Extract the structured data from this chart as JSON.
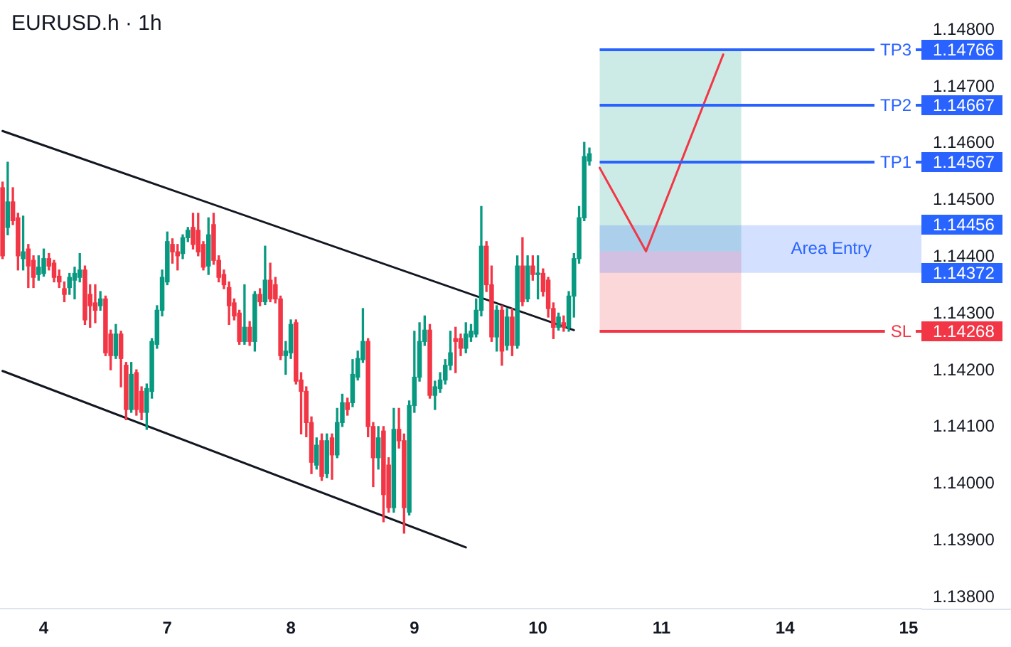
{
  "chart_data": {
    "type": "candlestick",
    "title": "EURUSD.h · 1h",
    "categories": [
      null,
      null,
      null,
      null,
      null,
      null,
      null,
      null,
      "4",
      null,
      null,
      null,
      null,
      null,
      null,
      null,
      null,
      null,
      null,
      null,
      null,
      null,
      null,
      null,
      null,
      null,
      null,
      null,
      null,
      null,
      null,
      null,
      "7",
      null,
      null,
      null,
      null,
      null,
      null,
      null,
      null,
      null,
      null,
      null,
      null,
      null,
      null,
      null,
      null,
      null,
      null,
      null,
      null,
      null,
      null,
      null,
      "8",
      null,
      null,
      null,
      null,
      null,
      null,
      null,
      null,
      null,
      null,
      null,
      null,
      null,
      null,
      null,
      null,
      null,
      null,
      null,
      null,
      null,
      null,
      null,
      "9",
      null,
      null,
      null,
      null,
      null,
      null,
      null,
      null,
      null,
      null,
      null,
      null,
      null,
      null,
      null,
      null,
      null,
      null,
      null,
      null,
      null,
      null,
      null,
      "10",
      null,
      null,
      null,
      null,
      null,
      null,
      null,
      null,
      null,
      null,
      null,
      null,
      null,
      null,
      null,
      null,
      null,
      null,
      null,
      null,
      null,
      null,
      null,
      "11",
      null,
      null,
      null,
      null,
      null,
      null,
      null,
      null,
      null,
      null,
      null,
      null,
      null,
      null,
      null,
      null,
      null,
      null,
      null,
      null,
      null,
      null,
      null,
      "14",
      null,
      null,
      null,
      null,
      null,
      null,
      null,
      null,
      null,
      null,
      null,
      null,
      null,
      null,
      null,
      null,
      null,
      null,
      null,
      null,
      null,
      null,
      null,
      "15",
      null,
      null
    ],
    "ohlc": [
      [
        1.14522,
        1.14532,
        1.14397,
        1.14402
      ],
      [
        1.14452,
        1.14567,
        1.14439,
        1.14497
      ],
      [
        1.14497,
        1.14522,
        1.14457,
        1.14464
      ],
      [
        1.14469,
        1.14477,
        1.14377,
        1.14402
      ],
      [
        1.14397,
        1.14472,
        1.14377,
        1.14409
      ],
      [
        1.14414,
        1.14422,
        1.14346,
        1.14384
      ],
      [
        1.14394,
        1.14402,
        1.14346,
        1.14364
      ],
      [
        1.14369,
        1.14402,
        1.14359,
        1.14382
      ],
      [
        1.14371,
        1.14414,
        1.14366,
        1.14397
      ],
      [
        1.14397,
        1.14406,
        1.14377,
        1.14384
      ],
      [
        1.14389,
        1.14394,
        1.14356,
        1.14364
      ],
      [
        1.14366,
        1.14377,
        1.14346,
        1.14356
      ],
      [
        1.14344,
        1.14356,
        1.14321,
        1.14334
      ],
      [
        1.14346,
        1.14371,
        1.14334,
        1.14364
      ],
      [
        1.14359,
        1.14382,
        1.14326,
        1.14371
      ],
      [
        1.14364,
        1.14406,
        1.14356,
        1.14377
      ],
      [
        1.14377,
        1.14384,
        1.14281,
        1.14289
      ],
      [
        1.14334,
        1.14351,
        1.14276,
        1.14314
      ],
      [
        1.14319,
        1.14351,
        1.14284,
        1.14306
      ],
      [
        1.14314,
        1.14339,
        1.14306,
        1.14326
      ],
      [
        1.14326,
        1.14331,
        1.14226,
        1.14231
      ],
      [
        1.14264,
        1.14271,
        1.14201,
        1.14226
      ],
      [
        1.14226,
        1.14281,
        1.14221,
        1.14264
      ],
      [
        1.14264,
        1.14269,
        1.14171,
        1.14221
      ],
      [
        1.14209,
        1.14214,
        1.14113,
        1.14131
      ],
      [
        1.14131,
        1.14214,
        1.14126,
        1.14193
      ],
      [
        1.14196,
        1.14201,
        1.14121,
        1.14131
      ],
      [
        1.14163,
        1.14171,
        1.14113,
        1.14126
      ],
      [
        1.14126,
        1.14176,
        1.14096,
        1.14168
      ],
      [
        1.14163,
        1.14256,
        1.14151,
        1.14251
      ],
      [
        1.14246,
        1.14314,
        1.14239,
        1.14306
      ],
      [
        1.14306,
        1.14377,
        1.14296,
        1.14364
      ],
      [
        1.14356,
        1.14444,
        1.14351,
        1.14427
      ],
      [
        1.14422,
        1.14432,
        1.14389,
        1.14409
      ],
      [
        1.14409,
        1.14422,
        1.14377,
        1.14402
      ],
      [
        1.14406,
        1.14439,
        1.14397,
        1.14434
      ],
      [
        1.14434,
        1.14452,
        1.14427,
        1.14447
      ],
      [
        1.14452,
        1.14477,
        1.14414,
        1.14422
      ],
      [
        1.14447,
        1.14477,
        1.14402,
        1.14409
      ],
      [
        1.14422,
        1.14427,
        1.14377,
        1.14382
      ],
      [
        1.14384,
        1.14469,
        1.14369,
        1.14439
      ],
      [
        1.14457,
        1.14477,
        1.14387,
        1.14394
      ],
      [
        1.14394,
        1.14402,
        1.14356,
        1.14364
      ],
      [
        1.14369,
        1.14377,
        1.14344,
        1.14351
      ],
      [
        1.14346,
        1.14356,
        1.14281,
        1.14314
      ],
      [
        1.14319,
        1.14326,
        1.14289,
        1.14296
      ],
      [
        1.14301,
        1.14306,
        1.14246,
        1.14251
      ],
      [
        1.14251,
        1.14351,
        1.14246,
        1.14276
      ],
      [
        1.14276,
        1.14286,
        1.14244,
        1.14251
      ],
      [
        1.14251,
        1.14339,
        1.14234,
        1.14334
      ],
      [
        1.14334,
        1.14344,
        1.14314,
        1.14321
      ],
      [
        1.14321,
        1.14419,
        1.14316,
        1.14359
      ],
      [
        1.14359,
        1.14389,
        1.14321,
        1.14326
      ],
      [
        1.14351,
        1.14364,
        1.14319,
        1.14326
      ],
      [
        1.14326,
        1.14331,
        1.14219,
        1.14226
      ],
      [
        1.14226,
        1.14251,
        1.14193,
        1.14234
      ],
      [
        1.14231,
        1.14289,
        1.14221,
        1.14281
      ],
      [
        1.14284,
        1.14289,
        1.14176,
        1.14181
      ],
      [
        1.14183,
        1.14196,
        1.14088,
        1.14163
      ],
      [
        1.14163,
        1.14171,
        1.14083,
        1.14108
      ],
      [
        1.14108,
        1.14118,
        1.14018,
        1.14038
      ],
      [
        1.14033,
        1.14081,
        1.14026,
        1.14068
      ],
      [
        1.14076,
        1.14088,
        1.14006,
        1.14013
      ],
      [
        1.14018,
        1.14088,
        1.14011,
        1.14076
      ],
      [
        1.14081,
        1.14088,
        1.14008,
        1.14051
      ],
      [
        1.14051,
        1.14133,
        1.14046,
        1.14108
      ],
      [
        1.14108,
        1.14158,
        1.14101,
        1.14143
      ],
      [
        1.14143,
        1.14151,
        1.14121,
        1.14131
      ],
      [
        1.14143,
        1.14219,
        1.14136,
        1.14193
      ],
      [
        1.14188,
        1.14234,
        1.14183,
        1.14221
      ],
      [
        1.14219,
        1.14309,
        1.14214,
        1.14251
      ],
      [
        1.14251,
        1.14256,
        1.14083,
        1.14101
      ],
      [
        1.14101,
        1.14108,
        1.13995,
        1.14046
      ],
      [
        1.14046,
        1.14101,
        1.14026,
        1.14081
      ],
      [
        1.14093,
        1.14101,
        1.13933,
        1.13981
      ],
      [
        1.14033,
        1.14046,
        1.1395,
        1.13958
      ],
      [
        1.13958,
        1.14133,
        1.1395,
        1.14096
      ],
      [
        1.14096,
        1.14133,
        1.14063,
        1.14076
      ],
      [
        1.14076,
        1.14088,
        1.13913,
        1.13958
      ],
      [
        1.1395,
        1.14146,
        1.13945,
        1.14138
      ],
      [
        1.14138,
        1.14269,
        1.14126,
        1.14188
      ],
      [
        1.14188,
        1.14284,
        1.14181,
        1.14251
      ],
      [
        1.14251,
        1.14296,
        1.14244,
        1.14271
      ],
      [
        1.14271,
        1.14281,
        1.14151,
        1.14156
      ],
      [
        1.14156,
        1.14181,
        1.14131,
        1.14171
      ],
      [
        1.14168,
        1.14196,
        1.14161,
        1.14183
      ],
      [
        1.14183,
        1.14219,
        1.14176,
        1.14209
      ],
      [
        1.14209,
        1.14269,
        1.14201,
        1.14231
      ],
      [
        1.14256,
        1.14276,
        1.14196,
        1.14251
      ],
      [
        1.14256,
        1.14264,
        1.14226,
        1.14239
      ],
      [
        1.14239,
        1.14284,
        1.14231,
        1.14264
      ],
      [
        1.14259,
        1.14281,
        1.14251,
        1.14269
      ],
      [
        1.14264,
        1.14326,
        1.14259,
        1.14306
      ],
      [
        1.14306,
        1.14489,
        1.14296,
        1.14419
      ],
      [
        1.14419,
        1.14427,
        1.14339,
        1.14351
      ],
      [
        1.14351,
        1.14384,
        1.14251,
        1.14259
      ],
      [
        1.14259,
        1.14314,
        1.14234,
        1.14306
      ],
      [
        1.14306,
        1.14314,
        1.14209,
        1.14234
      ],
      [
        1.14244,
        1.14309,
        1.14236,
        1.14294
      ],
      [
        1.14294,
        1.14309,
        1.14226,
        1.14244
      ],
      [
        1.14244,
        1.14402,
        1.14239,
        1.14384
      ],
      [
        1.14384,
        1.14434,
        1.14314,
        1.14321
      ],
      [
        1.14326,
        1.14402,
        1.14321,
        1.14384
      ],
      [
        1.14384,
        1.14402,
        1.14359,
        1.14369
      ],
      [
        1.14369,
        1.14402,
        1.14326,
        1.14371
      ],
      [
        1.14371,
        1.14379,
        1.14331,
        1.14339
      ],
      [
        1.14359,
        1.14364,
        1.14294,
        1.14309
      ],
      [
        1.14309,
        1.14319,
        1.14256,
        1.14276
      ],
      [
        1.14276,
        1.14301,
        1.14271,
        1.14294
      ],
      [
        1.14284,
        1.14296,
        1.14269,
        1.14276
      ],
      [
        1.14276,
        1.14339,
        1.14269,
        1.14331
      ],
      [
        1.14331,
        1.14406,
        1.14294,
        1.14397
      ],
      [
        1.14397,
        1.14489,
        1.14389,
        1.14469
      ],
      [
        1.14469,
        1.14602,
        1.14464,
        1.14577
      ],
      [
        1.14569,
        1.14592,
        1.14562,
        1.14582
      ],
      null,
      null,
      null,
      null,
      null,
      null,
      null,
      null,
      null,
      null,
      null,
      null,
      null,
      null,
      null,
      null,
      null,
      null,
      null,
      null,
      null,
      null,
      null,
      null,
      null,
      null,
      null,
      null,
      null,
      null,
      null,
      null,
      null,
      null,
      null,
      null,
      null,
      null,
      null,
      null,
      null,
      null,
      null,
      null,
      null,
      null,
      null,
      null,
      null,
      null,
      null,
      null,
      null,
      null,
      null,
      null,
      null,
      null,
      null,
      null,
      null,
      null,
      null,
      null
    ],
    "colors": [
      "#f23645",
      "#089981",
      "#f23645",
      "#f23645",
      "#089981",
      "#f23645",
      "#f23645",
      "#089981",
      "#089981",
      "#f23645",
      "#f23645",
      "#f23645",
      "#f23645",
      "#089981",
      "#089981",
      "#089981",
      "#f23645",
      "#f23645",
      "#f23645",
      "#089981",
      "#f23645",
      "#f23645",
      "#089981",
      "#f23645",
      "#f23645",
      "#089981",
      "#f23645",
      "#f23645",
      "#089981",
      "#089981",
      "#089981",
      "#089981",
      "#089981",
      "#f23645",
      "#f23645",
      "#089981",
      "#089981",
      "#f23645",
      "#f23645",
      "#f23645",
      "#089981",
      "#f23645",
      "#f23645",
      "#f23645",
      "#f23645",
      "#f23645",
      "#f23645",
      "#089981",
      "#f23645",
      "#089981",
      "#f23645",
      "#089981",
      "#f23645",
      "#f23645",
      "#f23645",
      "#089981",
      "#089981",
      "#f23645",
      "#f23645",
      "#f23645",
      "#f23645",
      "#089981",
      "#f23645",
      "#089981",
      "#f23645",
      "#089981",
      "#089981",
      "#f23645",
      "#089981",
      "#089981",
      "#089981",
      "#f23645",
      "#f23645",
      "#089981",
      "#f23645",
      "#f23645",
      "#089981",
      "#f23645",
      "#f23645",
      "#089981",
      "#089981",
      "#089981",
      "#089981",
      "#f23645",
      "#089981",
      "#089981",
      "#089981",
      "#089981",
      "#f23645",
      "#f23645",
      "#089981",
      "#089981",
      "#089981",
      "#089981",
      "#f23645",
      "#f23645",
      "#089981",
      "#f23645",
      "#089981",
      "#f23645",
      "#089981",
      "#f23645",
      "#089981",
      "#f23645",
      "#089981",
      "#f23645",
      "#f23645",
      "#f23645",
      "#089981",
      "#f23645",
      "#089981",
      "#089981",
      "#089981",
      "#089981",
      "#089981",
      null,
      null,
      null,
      null,
      null,
      null,
      null,
      null,
      null,
      null,
      null,
      null,
      null,
      null,
      null,
      null,
      null,
      null,
      null,
      null,
      null,
      null,
      null,
      null,
      null,
      null,
      null,
      null,
      null,
      null,
      null,
      null,
      null,
      null,
      null,
      null,
      null,
      null,
      null,
      null,
      null,
      null,
      null,
      null,
      null,
      null,
      null,
      null,
      null,
      null,
      null,
      null,
      null,
      null,
      null,
      null,
      null,
      null,
      null,
      null,
      null,
      null,
      null,
      null
    ],
    "series": [
      {
        "type": "line",
        "color": "#131722",
        "values": [
          1.14622,
          null,
          null,
          null,
          null,
          null,
          null,
          null,
          null,
          null,
          null,
          null,
          null,
          null,
          null,
          null,
          null,
          null,
          null,
          null,
          null,
          null,
          null,
          null,
          null,
          null,
          null,
          null,
          null,
          null,
          null,
          null,
          null,
          null,
          null,
          null,
          null,
          null,
          null,
          null,
          null,
          null,
          null,
          null,
          null,
          null,
          null,
          null,
          null,
          null,
          null,
          null,
          null,
          null,
          null,
          null,
          null,
          null,
          null,
          null,
          null,
          null,
          null,
          null,
          null,
          null,
          null,
          null,
          null,
          null,
          null,
          null,
          null,
          null,
          null,
          null,
          null,
          null,
          null,
          null,
          null,
          null,
          null,
          null,
          null,
          null,
          null,
          null,
          null,
          null,
          null,
          null,
          null,
          null,
          null,
          null,
          null,
          null,
          null,
          null,
          null,
          null,
          null,
          null,
          null,
          null,
          null,
          null,
          null,
          null,
          null,
          1.14271,
          null,
          null,
          null,
          null,
          null,
          null,
          null,
          null,
          null,
          null,
          null,
          null,
          null,
          null,
          null,
          null,
          null,
          null,
          null,
          null,
          null,
          null,
          null,
          null,
          null,
          null,
          null,
          null,
          null,
          null,
          null,
          null,
          null,
          null,
          null,
          null,
          null,
          null,
          null,
          null,
          null,
          null,
          null,
          null,
          null,
          null,
          null,
          null,
          null,
          null,
          null,
          null,
          null,
          null,
          null,
          null,
          null,
          null,
          null,
          null,
          null,
          null,
          null,
          null,
          null,
          null,
          null
        ]
      },
      {
        "type": "line",
        "color": "#131722",
        "values": [
          1.14199,
          null,
          null,
          null,
          null,
          null,
          null,
          null,
          null,
          null,
          null,
          null,
          null,
          null,
          null,
          null,
          null,
          null,
          null,
          null,
          null,
          null,
          null,
          null,
          null,
          null,
          null,
          null,
          null,
          null,
          null,
          null,
          null,
          null,
          null,
          null,
          null,
          null,
          null,
          null,
          null,
          null,
          null,
          null,
          null,
          null,
          null,
          null,
          null,
          null,
          null,
          null,
          null,
          null,
          null,
          null,
          null,
          null,
          null,
          null,
          null,
          null,
          null,
          null,
          null,
          null,
          null,
          null,
          null,
          null,
          null,
          null,
          null,
          null,
          null,
          null,
          null,
          null,
          null,
          null,
          null,
          null,
          null,
          null,
          null,
          null,
          null,
          null,
          null,
          null,
          1.13888,
          null,
          null,
          null,
          null,
          null,
          null,
          null,
          null,
          null,
          null,
          null,
          null,
          null,
          null,
          null,
          null,
          null,
          null,
          null,
          null,
          null,
          null,
          null,
          null,
          null,
          null,
          null,
          null,
          null,
          null,
          null,
          null,
          null,
          null,
          null,
          null,
          null,
          null,
          null,
          null,
          null,
          null,
          null,
          null,
          null,
          null,
          null,
          null,
          null,
          null,
          null,
          null,
          null,
          null,
          null,
          null,
          null,
          null,
          null,
          null,
          null,
          null,
          null,
          null,
          null,
          null,
          null,
          null,
          null,
          null,
          null,
          null,
          null,
          null,
          null,
          null,
          null,
          null,
          null,
          null,
          null,
          null,
          null,
          null,
          null,
          null,
          null,
          null
        ]
      },
      {
        "type": "line",
        "color": "#f23645",
        "values": [
          null,
          null,
          null,
          null,
          null,
          null,
          null,
          null,
          null,
          null,
          null,
          null,
          null,
          null,
          null,
          null,
          null,
          null,
          null,
          null,
          null,
          null,
          null,
          null,
          null,
          null,
          null,
          null,
          null,
          null,
          null,
          null,
          null,
          null,
          null,
          null,
          null,
          null,
          null,
          null,
          null,
          null,
          null,
          null,
          null,
          null,
          null,
          null,
          null,
          null,
          null,
          null,
          null,
          null,
          null,
          null,
          null,
          null,
          null,
          null,
          null,
          null,
          null,
          null,
          null,
          null,
          null,
          null,
          null,
          null,
          null,
          null,
          null,
          null,
          null,
          null,
          null,
          null,
          null,
          null,
          null,
          null,
          null,
          null,
          null,
          null,
          null,
          null,
          null,
          null,
          null,
          null,
          null,
          null,
          null,
          null,
          null,
          null,
          null,
          null,
          null,
          null,
          null,
          null,
          null,
          null,
          null,
          null,
          null,
          null,
          null,
          null,
          null,
          null,
          null,
          null,
          1.14557,
          null,
          null,
          null,
          null,
          null,
          null,
          null,
          null,
          1.1441,
          null,
          null,
          null,
          null,
          null,
          null,
          null,
          null,
          null,
          null,
          null,
          null,
          null,
          null,
          1.14757,
          null,
          null,
          null,
          null,
          null,
          null,
          null,
          null,
          null,
          null,
          null,
          null,
          null,
          null,
          null,
          null,
          null,
          null,
          null,
          null,
          null,
          null,
          null,
          null,
          null,
          null,
          null,
          null,
          null,
          null,
          null,
          null,
          null,
          null,
          null,
          null,
          null,
          null
        ]
      }
    ],
    "ylim": [
      1.1378,
      1.14853
    ],
    "yticks": [
      {
        "value": 1.138,
        "label": "1.13800"
      },
      {
        "value": 1.139,
        "label": "1.13900"
      },
      {
        "value": 1.14,
        "label": "1.14000"
      },
      {
        "value": 1.141,
        "label": "1.14100"
      },
      {
        "value": 1.142,
        "label": "1.14200"
      },
      {
        "value": 1.143,
        "label": "1.14300"
      },
      {
        "value": 1.144,
        "label": "1.14400"
      },
      {
        "value": 1.145,
        "label": "1.14500"
      },
      {
        "value": 1.146,
        "label": "1.14600"
      },
      {
        "value": 1.147,
        "label": "1.14700"
      },
      {
        "value": 1.148,
        "label": "1.14800"
      }
    ],
    "ref_lines": [
      {
        "axis": "y",
        "value": 1.14766,
        "label": "TP3",
        "color": "#2962ff"
      },
      {
        "axis": "y",
        "value": 1.14667,
        "label": "TP2",
        "color": "#2962ff"
      },
      {
        "axis": "y",
        "value": 1.14567,
        "label": "TP1",
        "color": "#2962ff"
      },
      {
        "axis": "y",
        "value": 1.14268,
        "label": "SL",
        "color": "#f23645"
      }
    ],
    "bands": [
      {
        "axis": "y",
        "from": 1.1441,
        "to": 1.14766,
        "color": "#cdebe6"
      },
      {
        "axis": "y",
        "from": 1.14268,
        "to": 1.1441,
        "color": "#fcd7da"
      },
      {
        "axis": "y",
        "from": 1.14372,
        "to": 1.14456,
        "label": "Area Entry",
        "color": "#d4e0ff"
      }
    ],
    "annotations": [
      "1.14766",
      "1.14667",
      "1.14567",
      "1.14268",
      "1.14456",
      "1.14372"
    ]
  }
}
